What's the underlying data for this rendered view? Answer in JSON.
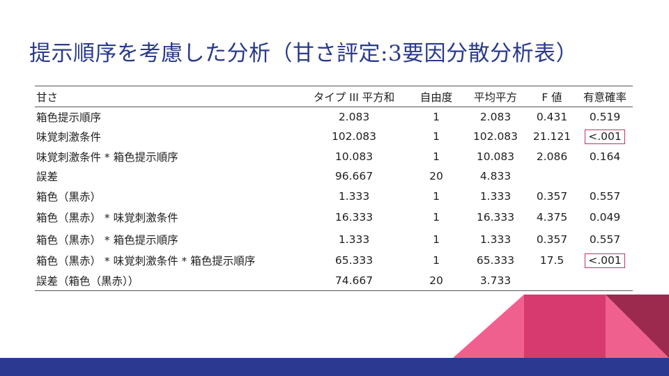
{
  "slide": {
    "title": "提示順序を考慮した分析（甘さ評定:3要因分散分析表）"
  },
  "table": {
    "headers": {
      "source": "甘さ",
      "ss": "タイプ III 平方和",
      "df": "自由度",
      "ms": "平均平方",
      "f": "F 値",
      "p": "有意確率"
    },
    "rows": [
      {
        "source": "箱色提示順序",
        "ss": "2.083",
        "df": "1",
        "ms": "2.083",
        "f": "0.431",
        "p": "0.519",
        "p_highlight": false
      },
      {
        "source": "味覚刺激条件",
        "ss": "102.083",
        "df": "1",
        "ms": "102.083",
        "f": "21.121",
        "p": "<.001",
        "p_highlight": true
      },
      {
        "source": "味覚刺激条件 * 箱色提示順序",
        "ss": "10.083",
        "df": "1",
        "ms": "10.083",
        "f": "2.086",
        "p": "0.164",
        "p_highlight": false
      },
      {
        "source": "誤差",
        "ss": "96.667",
        "df": "20",
        "ms": "4.833",
        "f": "",
        "p": "",
        "p_highlight": false
      },
      {
        "source": "箱色（黒赤）",
        "ss": "1.333",
        "df": "1",
        "ms": "1.333",
        "f": "0.357",
        "p": "0.557",
        "p_highlight": false
      },
      {
        "source": "箱色（黒赤） * 味覚刺激条件",
        "ss": "16.333",
        "df": "1",
        "ms": "16.333",
        "f": "4.375",
        "p": "0.049",
        "p_highlight": false
      },
      {
        "source": "箱色（黒赤） * 箱色提示順序",
        "ss": "1.333",
        "df": "1",
        "ms": "1.333",
        "f": "0.357",
        "p": "0.557",
        "p_highlight": false
      },
      {
        "source": "箱色（黒赤） * 味覚刺激条件 * 箱色提示順序",
        "ss": "65.333",
        "df": "1",
        "ms": "65.333",
        "f": "17.5",
        "p": "<.001",
        "p_highlight": true
      },
      {
        "source": "誤差（箱色（黒赤））",
        "ss": "74.667",
        "df": "20",
        "ms": "3.733",
        "f": "",
        "p": "",
        "p_highlight": false
      }
    ]
  },
  "colors": {
    "title": "#2a3a8c",
    "highlight_box": "#c0306a",
    "bottom_bar": "#2b3990",
    "deco_pink": "#f0608f",
    "deco_magenta": "#d63a6e",
    "deco_dark": "#9b2a4e"
  }
}
